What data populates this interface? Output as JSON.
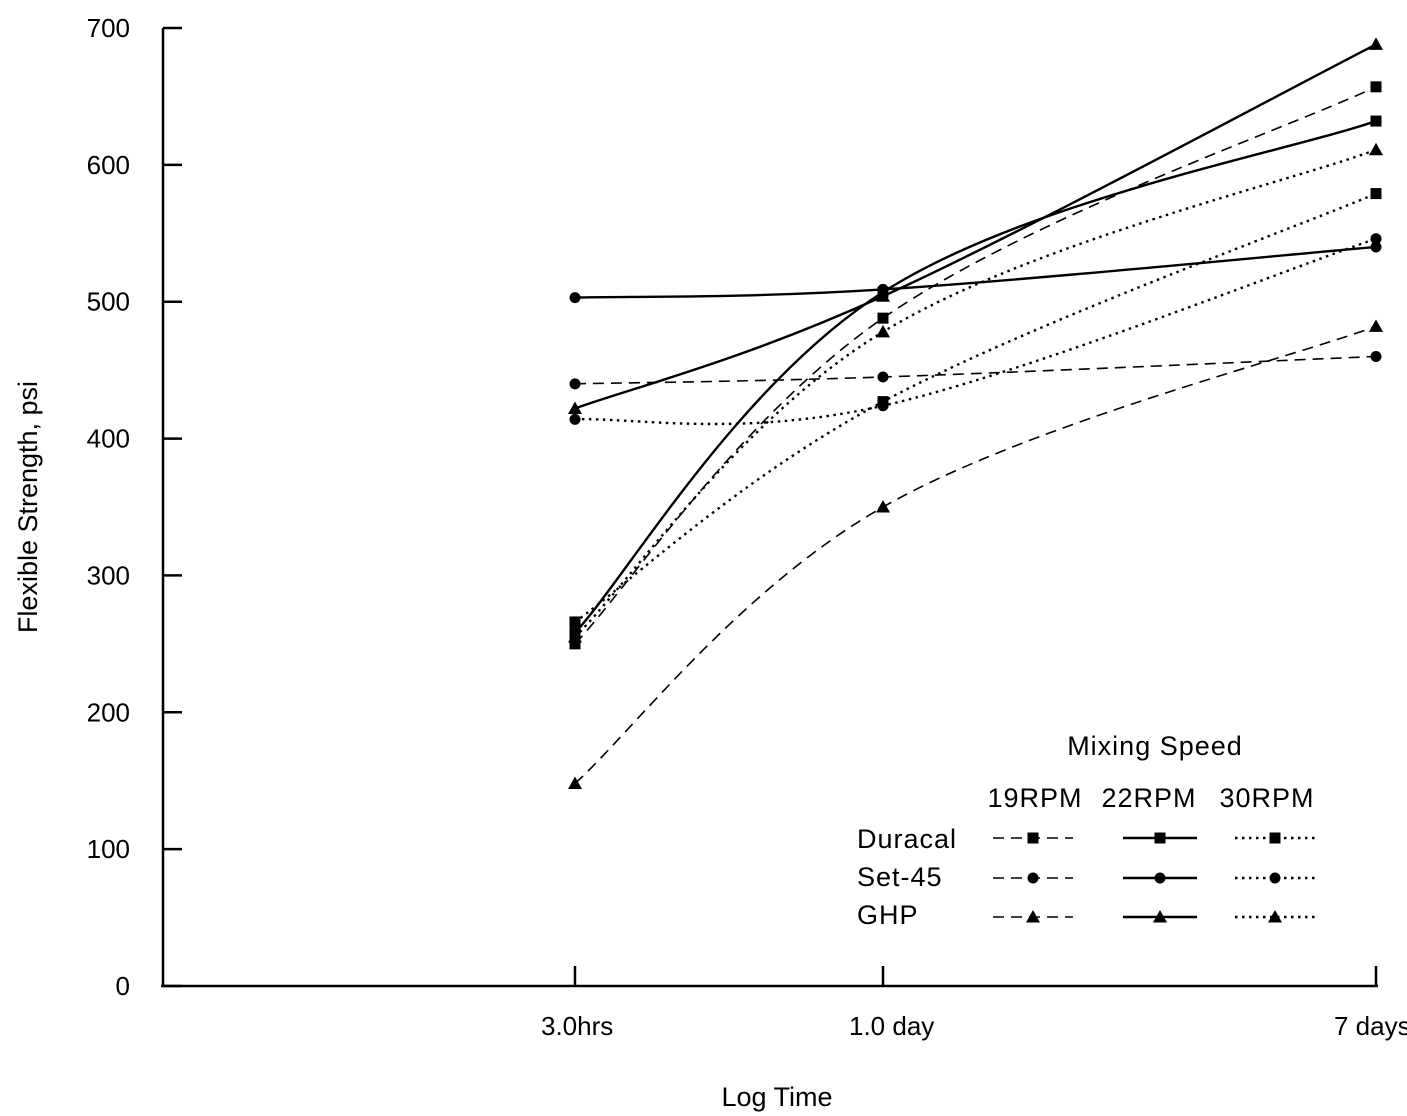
{
  "chart_data": {
    "type": "line",
    "xlabel": "Log Time",
    "ylabel": "Flexible Strength, psi",
    "categories": [
      "3.0hrs",
      "1.0 day",
      "7 days"
    ],
    "yticks": [
      "0",
      "100",
      "200",
      "300",
      "400",
      "500",
      "600",
      "700"
    ],
    "ylim": [
      0,
      700
    ],
    "x_scale": "log",
    "grid": false,
    "legend": {
      "title": "Mixing Speed",
      "columns": [
        "19RPM",
        "22RPM",
        "30RPM"
      ],
      "rows": [
        "Duracal",
        "Set-45",
        "GHP"
      ],
      "placement": "bottom-right"
    },
    "series": [
      {
        "name": "Duracal 19RPM",
        "material": "Duracal",
        "speed": "19RPM",
        "values": [
          250,
          488,
          657
        ]
      },
      {
        "name": "Set-45 19RPM",
        "material": "Set-45",
        "speed": "19RPM",
        "values": [
          440,
          445,
          460
        ]
      },
      {
        "name": "GHP 19RPM",
        "material": "GHP",
        "speed": "19RPM",
        "values": [
          148,
          350,
          482
        ]
      },
      {
        "name": "Duracal 22RPM",
        "material": "Duracal",
        "speed": "22RPM",
        "values": [
          258,
          507,
          632
        ]
      },
      {
        "name": "Set-45 22RPM",
        "material": "Set-45",
        "speed": "22RPM",
        "values": [
          503,
          509,
          540
        ]
      },
      {
        "name": "GHP 22RPM",
        "material": "GHP",
        "speed": "22RPM",
        "values": [
          422,
          504,
          688
        ]
      },
      {
        "name": "Duracal 30RPM",
        "material": "Duracal",
        "speed": "30RPM",
        "values": [
          266,
          427,
          579
        ]
      },
      {
        "name": "Set-45 30RPM",
        "material": "Set-45",
        "speed": "30RPM",
        "values": [
          414,
          424,
          546
        ]
      },
      {
        "name": "GHP 30RPM",
        "material": "GHP",
        "speed": "30RPM",
        "values": [
          255,
          478,
          611
        ]
      }
    ]
  }
}
